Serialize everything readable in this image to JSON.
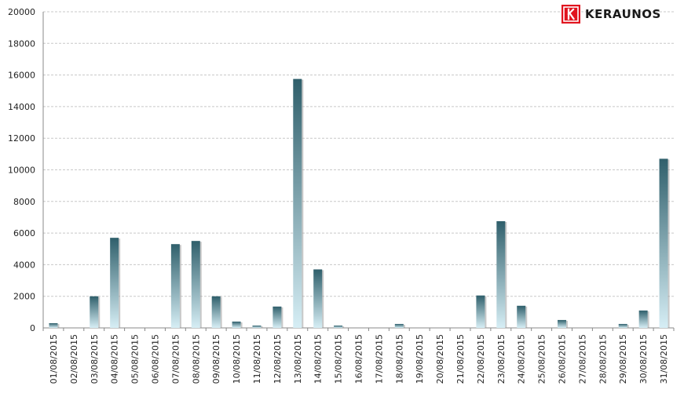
{
  "brand": {
    "name": "KERAUNOS",
    "accent_color": "#e1141e",
    "logo_icon": "keraunos-logo-icon"
  },
  "chart_data": {
    "type": "bar",
    "title": "",
    "xlabel": "",
    "ylabel": "",
    "ylim": [
      0,
      20000
    ],
    "yticks": [
      0,
      2000,
      4000,
      6000,
      8000,
      10000,
      12000,
      14000,
      16000,
      18000,
      20000
    ],
    "grid": true,
    "legend": "none",
    "bar_color_top": "#2f5f6b",
    "bar_color_bottom": "#d6eef5",
    "categories": [
      "01/08/2015",
      "02/08/2015",
      "03/08/2015",
      "04/08/2015",
      "05/08/2015",
      "06/08/2015",
      "07/08/2015",
      "08/08/2015",
      "09/08/2015",
      "10/08/2015",
      "11/08/2015",
      "12/08/2015",
      "13/08/2015",
      "14/08/2015",
      "15/08/2015",
      "16/08/2015",
      "17/08/2015",
      "18/08/2015",
      "19/08/2015",
      "20/08/2015",
      "21/08/2015",
      "22/08/2015",
      "23/08/2015",
      "24/08/2015",
      "25/08/2015",
      "26/08/2015",
      "27/08/2015",
      "28/08/2015",
      "29/08/2015",
      "30/08/2015",
      "31/08/2015"
    ],
    "values": [
      300,
      0,
      2000,
      5700,
      0,
      0,
      5300,
      5500,
      2000,
      400,
      150,
      1350,
      15750,
      3700,
      150,
      0,
      0,
      250,
      0,
      0,
      0,
      2050,
      6750,
      1400,
      0,
      500,
      0,
      0,
      250,
      1100,
      10700
    ]
  }
}
